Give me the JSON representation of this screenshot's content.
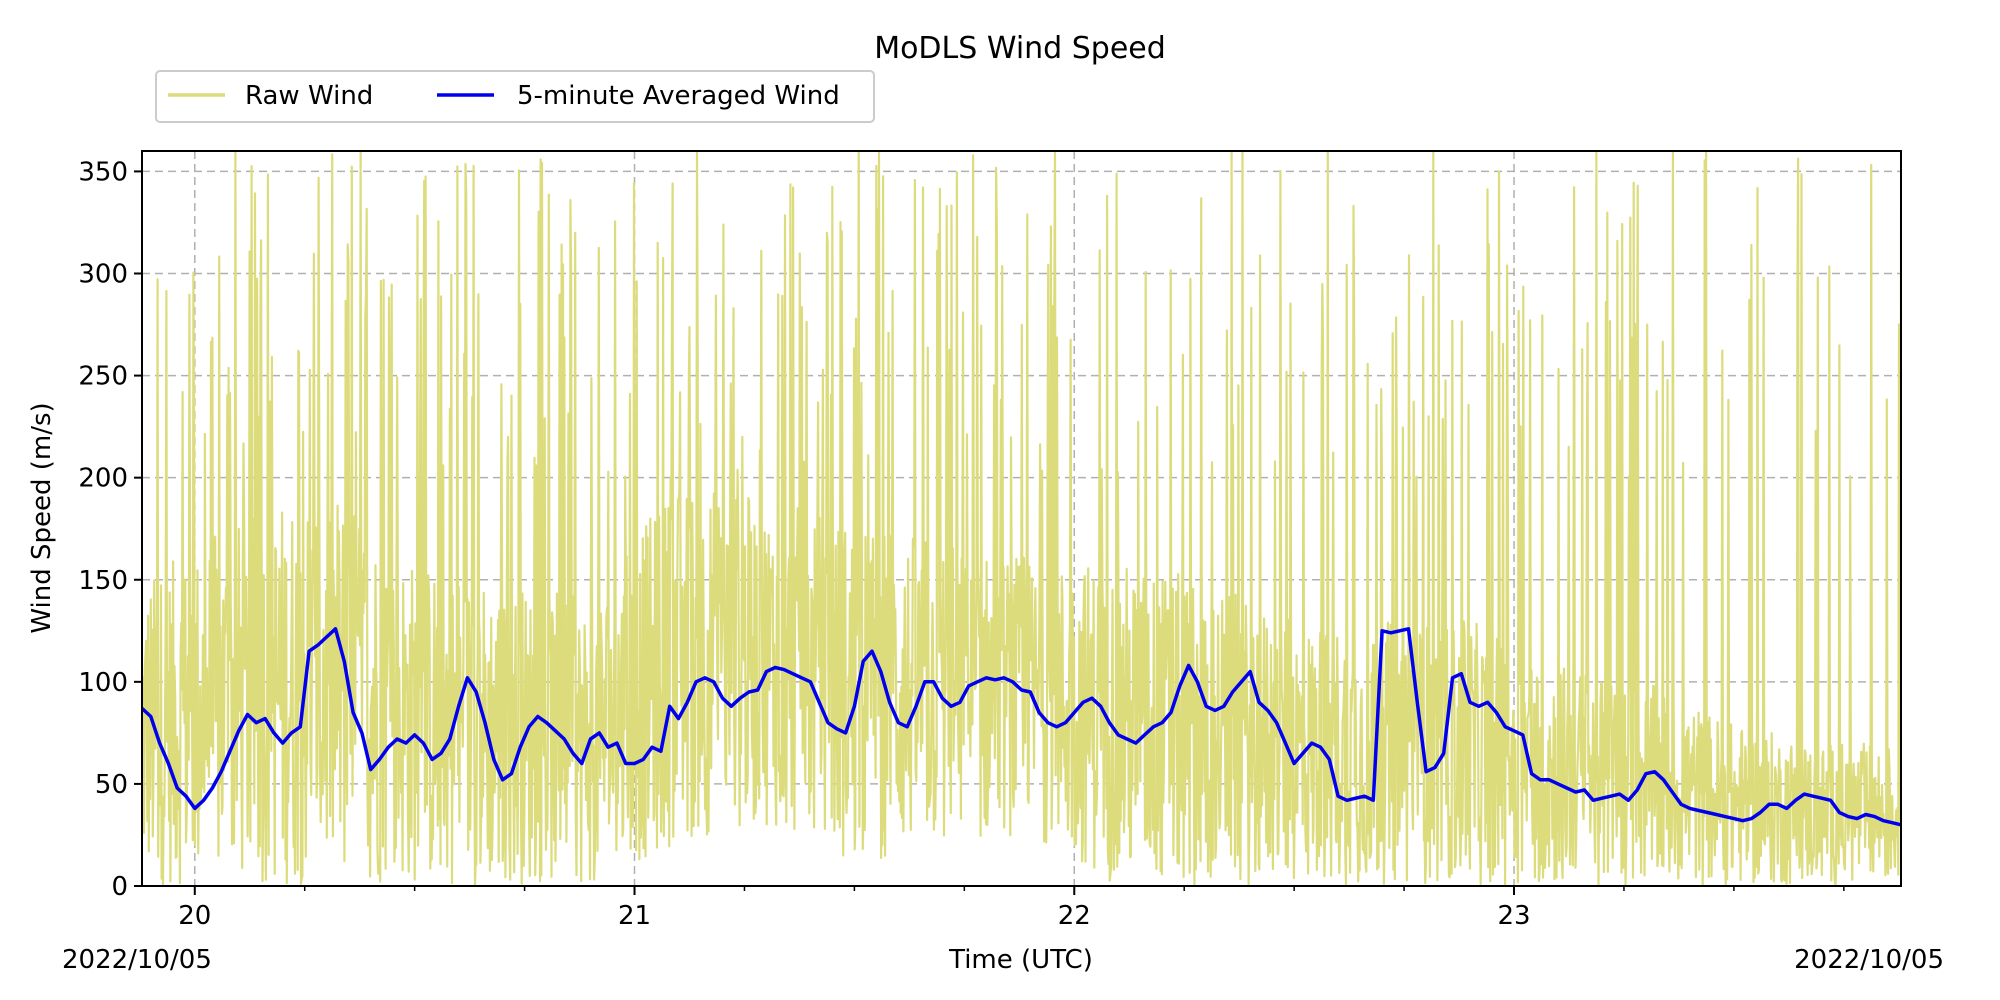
{
  "chart_data": {
    "type": "line",
    "title": "MoDLS Wind Speed",
    "xlabel": "Time (UTC)",
    "ylabel": "Wind Speed (m/s)",
    "x_start_label": "2022/10/05",
    "x_end_label": "2022/10/05",
    "xlim": [
      19.88,
      23.88
    ],
    "ylim": [
      0,
      360
    ],
    "x_ticks": [
      20,
      21,
      22,
      23
    ],
    "x_tick_labels": [
      "20",
      "21",
      "22",
      "23"
    ],
    "x_minor_step": 0.25,
    "y_ticks": [
      0,
      50,
      100,
      150,
      200,
      250,
      300,
      350
    ],
    "y_tick_labels": [
      "0",
      "50",
      "100",
      "150",
      "200",
      "250",
      "300",
      "350"
    ],
    "grid": true,
    "legend_position": "top-left, above plot",
    "series": [
      {
        "name": "Raw Wind",
        "color": "#dcdc7d",
        "style": "noisy high-frequency raw signal; spikes frequently reach 0–360 m/s; bulk values follow envelope below",
        "envelope": {
          "x": [
            19.88,
            20.1,
            20.3,
            20.5,
            20.7,
            20.9,
            21.1,
            21.3,
            21.5,
            21.7,
            21.9,
            22.1,
            22.3,
            22.5,
            22.7,
            22.9,
            23.1,
            23.3,
            23.5,
            23.7,
            23.88
          ],
          "low": [
            0,
            0,
            0,
            0,
            0,
            0,
            20,
            30,
            10,
            20,
            25,
            0,
            0,
            0,
            0,
            0,
            0,
            0,
            0,
            0,
            0
          ],
          "high": [
            150,
            180,
            200,
            160,
            150,
            140,
            200,
            190,
            180,
            170,
            160,
            160,
            150,
            130,
            130,
            130,
            110,
            100,
            80,
            70,
            70
          ]
        }
      },
      {
        "name": "5-minute Averaged Wind",
        "color": "#0000ee",
        "x": [
          19.88,
          19.9,
          19.92,
          19.94,
          19.96,
          19.98,
          20.0,
          20.02,
          20.04,
          20.06,
          20.08,
          20.1,
          20.12,
          20.14,
          20.16,
          20.18,
          20.2,
          20.22,
          20.24,
          20.26,
          20.28,
          20.3,
          20.32,
          20.34,
          20.36,
          20.38,
          20.4,
          20.42,
          20.44,
          20.46,
          20.48,
          20.5,
          20.52,
          20.54,
          20.56,
          20.58,
          20.6,
          20.62,
          20.64,
          20.66,
          20.68,
          20.7,
          20.72,
          20.74,
          20.76,
          20.78,
          20.8,
          20.82,
          20.84,
          20.86,
          20.88,
          20.9,
          20.92,
          20.94,
          20.96,
          20.98,
          21.0,
          21.02,
          21.04,
          21.06,
          21.08,
          21.1,
          21.12,
          21.14,
          21.16,
          21.18,
          21.2,
          21.22,
          21.24,
          21.26,
          21.28,
          21.3,
          21.32,
          21.34,
          21.36,
          21.38,
          21.4,
          21.42,
          21.44,
          21.46,
          21.48,
          21.5,
          21.52,
          21.54,
          21.56,
          21.58,
          21.6,
          21.62,
          21.64,
          21.66,
          21.68,
          21.7,
          21.72,
          21.74,
          21.76,
          21.78,
          21.8,
          21.82,
          21.84,
          21.86,
          21.88,
          21.9,
          21.92,
          21.94,
          21.96,
          21.98,
          22.0,
          22.02,
          22.04,
          22.06,
          22.08,
          22.1,
          22.12,
          22.14,
          22.16,
          22.18,
          22.2,
          22.22,
          22.24,
          22.26,
          22.28,
          22.3,
          22.32,
          22.34,
          22.36,
          22.38,
          22.4,
          22.42,
          22.44,
          22.46,
          22.48,
          22.5,
          22.52,
          22.54,
          22.56,
          22.58,
          22.6,
          22.62,
          22.64,
          22.66,
          22.68,
          22.7,
          22.72,
          22.74,
          22.76,
          22.78,
          22.8,
          22.82,
          22.84,
          22.86,
          22.88,
          22.9,
          22.92,
          22.94,
          22.96,
          22.98,
          23.0,
          23.02,
          23.04,
          23.06,
          23.08,
          23.1,
          23.12,
          23.14,
          23.16,
          23.18,
          23.2,
          23.22,
          23.24,
          23.26,
          23.28,
          23.3,
          23.32,
          23.34,
          23.36,
          23.38,
          23.4,
          23.42,
          23.44,
          23.46,
          23.48,
          23.5,
          23.52,
          23.54,
          23.56,
          23.58,
          23.6,
          23.62,
          23.64,
          23.66,
          23.68,
          23.7,
          23.72,
          23.74,
          23.76,
          23.78,
          23.8,
          23.82,
          23.84,
          23.86,
          23.88
        ],
        "y": [
          87,
          83,
          70,
          60,
          48,
          44,
          38,
          42,
          48,
          56,
          66,
          76,
          84,
          80,
          82,
          75,
          70,
          75,
          78,
          115,
          118,
          122,
          126,
          110,
          85,
          75,
          57,
          62,
          68,
          72,
          70,
          74,
          70,
          62,
          65,
          72,
          88,
          102,
          95,
          80,
          62,
          52,
          55,
          68,
          78,
          83,
          80,
          76,
          72,
          65,
          60,
          72,
          75,
          68,
          70,
          60,
          60,
          62,
          68,
          66,
          88,
          82,
          90,
          100,
          102,
          100,
          92,
          88,
          92,
          95,
          96,
          105,
          107,
          106,
          104,
          102,
          100,
          90,
          80,
          77,
          75,
          88,
          110,
          115,
          105,
          90,
          80,
          78,
          88,
          100,
          100,
          92,
          88,
          90,
          98,
          100,
          102,
          101,
          102,
          100,
          96,
          95,
          85,
          80,
          78,
          80,
          85,
          90,
          92,
          88,
          80,
          74,
          72,
          70,
          74,
          78,
          80,
          85,
          98,
          108,
          100,
          88,
          86,
          88,
          95,
          100,
          105,
          90,
          86,
          80,
          70,
          60,
          65,
          70,
          68,
          62,
          44,
          42,
          43,
          44,
          42,
          125,
          124,
          125,
          126,
          90,
          56,
          58,
          65,
          102,
          104,
          90,
          88,
          90,
          85,
          78,
          76,
          74,
          55,
          52,
          52,
          50,
          48,
          46,
          47,
          42,
          43,
          44,
          45,
          42,
          47,
          55,
          56,
          52,
          46,
          40,
          38,
          37,
          36,
          35,
          34,
          33,
          32,
          33,
          36,
          40,
          40,
          38,
          42,
          45,
          44,
          43,
          42,
          36,
          34,
          33,
          35,
          34,
          32,
          31,
          30
        ]
      }
    ]
  }
}
